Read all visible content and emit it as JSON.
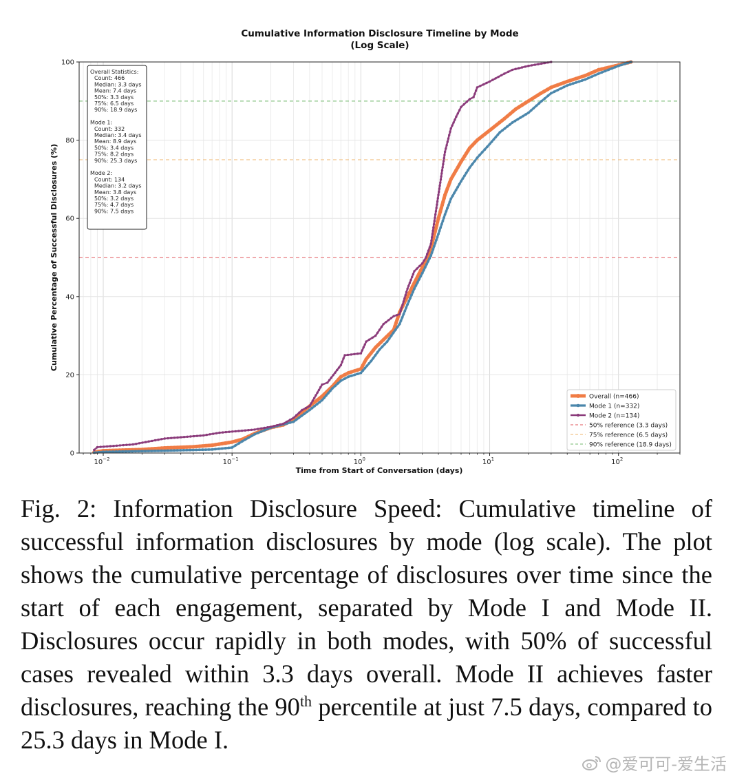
{
  "chart_data": {
    "type": "line",
    "title": "Cumulative Information Disclosure Timeline by Mode",
    "subtitle": "(Log Scale)",
    "xlabel": "Time from Start of Conversation (days)",
    "ylabel": "Cumulative Percentage of Successful Disclosures (%)",
    "xscale": "log",
    "xlim": [
      0.0065,
      300
    ],
    "ylim": [
      0,
      100
    ],
    "grid": true,
    "x_ticks": [
      0.01,
      0.1,
      1,
      10,
      100
    ],
    "x_tick_labels": [
      {
        "base": "10",
        "exp": "−2"
      },
      {
        "base": "10",
        "exp": "−1"
      },
      {
        "base": "10",
        "exp": "0"
      },
      {
        "base": "10",
        "exp": "1"
      },
      {
        "base": "10",
        "exp": "2"
      }
    ],
    "y_ticks": [
      0,
      20,
      40,
      60,
      80,
      100
    ],
    "y_tick_labels": [
      "0",
      "20",
      "40",
      "60",
      "80",
      "100"
    ],
    "legend_position": "bottom-right",
    "series": [
      {
        "name": "Overall (n=466)",
        "color": "#f07c45",
        "points": [
          [
            0.0085,
            0.2
          ],
          [
            0.01,
            0.6
          ],
          [
            0.02,
            0.9
          ],
          [
            0.03,
            1.3
          ],
          [
            0.05,
            1.6
          ],
          [
            0.07,
            2.0
          ],
          [
            0.1,
            2.8
          ],
          [
            0.12,
            3.5
          ],
          [
            0.15,
            5.0
          ],
          [
            0.2,
            6.5
          ],
          [
            0.25,
            7.2
          ],
          [
            0.3,
            8.5
          ],
          [
            0.35,
            10.5
          ],
          [
            0.4,
            12.0
          ],
          [
            0.5,
            14.5
          ],
          [
            0.6,
            17.0
          ],
          [
            0.7,
            19.5
          ],
          [
            0.8,
            20.5
          ],
          [
            1.0,
            21.5
          ],
          [
            1.1,
            24.0
          ],
          [
            1.3,
            27.0
          ],
          [
            1.5,
            29.0
          ],
          [
            1.8,
            31.5
          ],
          [
            2.0,
            36.0
          ],
          [
            2.3,
            40.0
          ],
          [
            2.6,
            43.5
          ],
          [
            3.0,
            47.5
          ],
          [
            3.3,
            50.0
          ],
          [
            3.6,
            54.0
          ],
          [
            4.0,
            60.0
          ],
          [
            4.5,
            66.0
          ],
          [
            5.0,
            70.0
          ],
          [
            6.0,
            74.5
          ],
          [
            7.0,
            78.0
          ],
          [
            8.0,
            80.0
          ],
          [
            10.0,
            82.5
          ],
          [
            13.0,
            85.5
          ],
          [
            16.0,
            88.0
          ],
          [
            20.0,
            90.0
          ],
          [
            25.0,
            92.0
          ],
          [
            30.0,
            93.5
          ],
          [
            40.0,
            95.0
          ],
          [
            55.0,
            96.5
          ],
          [
            70.0,
            98.0
          ],
          [
            100.0,
            99.2
          ],
          [
            125.0,
            100.0
          ]
        ]
      },
      {
        "name": "Mode 1 (n=332)",
        "color": "#4a86ab",
        "points": [
          [
            0.0085,
            0.1
          ],
          [
            0.01,
            0.3
          ],
          [
            0.03,
            0.6
          ],
          [
            0.07,
            0.9
          ],
          [
            0.1,
            1.4
          ],
          [
            0.12,
            3.0
          ],
          [
            0.15,
            4.8
          ],
          [
            0.2,
            6.5
          ],
          [
            0.3,
            8.0
          ],
          [
            0.4,
            11.0
          ],
          [
            0.5,
            13.5
          ],
          [
            0.6,
            16.5
          ],
          [
            0.7,
            18.5
          ],
          [
            0.8,
            19.5
          ],
          [
            1.0,
            20.5
          ],
          [
            1.2,
            23.5
          ],
          [
            1.4,
            26.5
          ],
          [
            1.6,
            28.5
          ],
          [
            2.0,
            33.0
          ],
          [
            2.3,
            38.0
          ],
          [
            2.6,
            42.0
          ],
          [
            3.0,
            46.0
          ],
          [
            3.5,
            50.5
          ],
          [
            4.0,
            56.0
          ],
          [
            4.5,
            61.0
          ],
          [
            5.0,
            65.0
          ],
          [
            6.0,
            69.5
          ],
          [
            7.0,
            73.0
          ],
          [
            8.0,
            75.5
          ],
          [
            10.0,
            79.0
          ],
          [
            12.0,
            82.0
          ],
          [
            15.0,
            84.5
          ],
          [
            20.0,
            87.0
          ],
          [
            25.3,
            90.0
          ],
          [
            30.0,
            92.0
          ],
          [
            40.0,
            94.0
          ],
          [
            55.0,
            95.5
          ],
          [
            70.0,
            97.0
          ],
          [
            100.0,
            99.0
          ],
          [
            125.0,
            100.0
          ]
        ]
      },
      {
        "name": "Mode 2 (n=134)",
        "color": "#8a3a7a",
        "points": [
          [
            0.0085,
            0.8
          ],
          [
            0.009,
            1.5
          ],
          [
            0.017,
            2.2
          ],
          [
            0.03,
            3.7
          ],
          [
            0.06,
            4.5
          ],
          [
            0.08,
            5.2
          ],
          [
            0.15,
            6.0
          ],
          [
            0.2,
            6.7
          ],
          [
            0.25,
            7.5
          ],
          [
            0.3,
            9.0
          ],
          [
            0.35,
            11.0
          ],
          [
            0.4,
            12.0
          ],
          [
            0.5,
            17.5
          ],
          [
            0.55,
            18.0
          ],
          [
            0.7,
            22.5
          ],
          [
            0.75,
            25.0
          ],
          [
            1.0,
            25.5
          ],
          [
            1.1,
            28.5
          ],
          [
            1.3,
            30.0
          ],
          [
            1.5,
            33.0
          ],
          [
            1.8,
            35.0
          ],
          [
            2.0,
            35.5
          ],
          [
            2.3,
            42.0
          ],
          [
            2.6,
            46.5
          ],
          [
            3.0,
            48.5
          ],
          [
            3.2,
            50.0
          ],
          [
            3.5,
            53.5
          ],
          [
            4.0,
            66.0
          ],
          [
            4.5,
            77.0
          ],
          [
            5.0,
            83.0
          ],
          [
            5.5,
            86.0
          ],
          [
            6.0,
            88.5
          ],
          [
            7.0,
            90.5
          ],
          [
            7.5,
            91.0
          ],
          [
            8.0,
            93.5
          ],
          [
            10.0,
            95.0
          ],
          [
            13.0,
            97.0
          ],
          [
            15.0,
            98.0
          ],
          [
            20.0,
            99.0
          ],
          [
            30.0,
            100.0
          ]
        ]
      }
    ],
    "reference_lines": [
      {
        "name": "50% reference (3.3 days)",
        "y": 50,
        "color": "#e8787c"
      },
      {
        "name": "75% reference (6.5 days)",
        "y": 75,
        "color": "#f2c48a"
      },
      {
        "name": "90% reference (18.9 days)",
        "y": 90,
        "color": "#8fc78a"
      }
    ],
    "stats_box": [
      "Overall Statistics:",
      "  Count: 466",
      "  Median: 3.3 days",
      "  Mean: 7.4 days",
      "  50%: 3.3 days",
      "  75%: 6.5 days",
      "  90%: 18.9 days",
      "",
      "Mode 1:",
      "  Count: 332",
      "  Median: 3.4 days",
      "  Mean: 8.9 days",
      "  50%: 3.4 days",
      "  75%: 8.2 days",
      "  90%: 25.3 days",
      "",
      "Mode 2:",
      "  Count: 134",
      "  Median: 3.2 days",
      "  Mean: 3.8 days",
      "  50%: 3.2 days",
      "  75%: 4.7 days",
      "  90%: 7.5 days"
    ]
  },
  "caption": {
    "main": "Fig. 2: Information Disclosure Speed: Cumulative timeline of successful information disclosures by mode (log scale). The plot shows the cumulative percentage of disclosures over time since the start of each engagement, separated by Mode I and Mode II. Disclosures occur rapidly in both modes, with 50% of successful cases revealed within 3.3 days overall. Mode II achieves faster disclosures, reaching the 90",
    "superscript": "th",
    "tail": " percentile at just 7.5 days, compared to 25.3 days in Mode I."
  },
  "watermark": {
    "text": "@爱可可-爱生活"
  }
}
